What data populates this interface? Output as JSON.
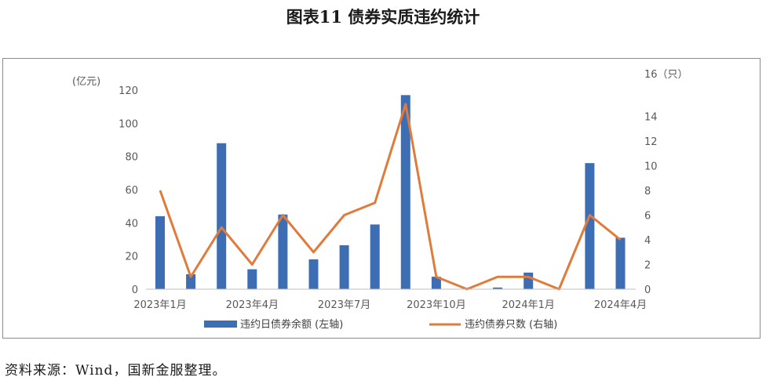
{
  "figure": {
    "title": "图表11  债券实质违约统计",
    "source": "资料来源：Wind，国新金服整理。"
  },
  "chart_data": {
    "type": "bar",
    "months": [
      "2023-01",
      "2023-02",
      "2023-03",
      "2023-04",
      "2023-05",
      "2023-06",
      "2023-07",
      "2023-08",
      "2023-09",
      "2023-10",
      "2023-11",
      "2023-12",
      "2024-01",
      "2024-02",
      "2024-03",
      "2024-04"
    ],
    "x_tick_labels": [
      "2023年1月",
      "2023年4月",
      "2023年7月",
      "2023年10月",
      "2024年1月",
      "2024年4月"
    ],
    "x_tick_indices": [
      0,
      3,
      6,
      9,
      12,
      15
    ],
    "left_axis": {
      "unit": "(亿元)",
      "ylim": [
        0,
        120
      ],
      "ticks": [
        0,
        20,
        40,
        60,
        80,
        100,
        120
      ]
    },
    "right_axis": {
      "unit": "16（只）",
      "ylim": [
        0,
        16
      ],
      "ticks": [
        0,
        2,
        4,
        6,
        8,
        10,
        12,
        14
      ]
    },
    "series": [
      {
        "name": "违约日债券余额 (左轴)",
        "type": "bar",
        "axis": "left",
        "color": "#3d6db3",
        "values": [
          44,
          9,
          88,
          12,
          45,
          18,
          26.5,
          39,
          117,
          7.5,
          0,
          1,
          10,
          0,
          76,
          31
        ]
      },
      {
        "name": "违约债券只数 (右轴)",
        "type": "line",
        "axis": "right",
        "color": "#e07b3c",
        "values": [
          8,
          1,
          5,
          2,
          6,
          3,
          6,
          7,
          15,
          1,
          0,
          1,
          1,
          0,
          6,
          4
        ]
      }
    ],
    "grid": false,
    "legend_position": "bottom"
  }
}
